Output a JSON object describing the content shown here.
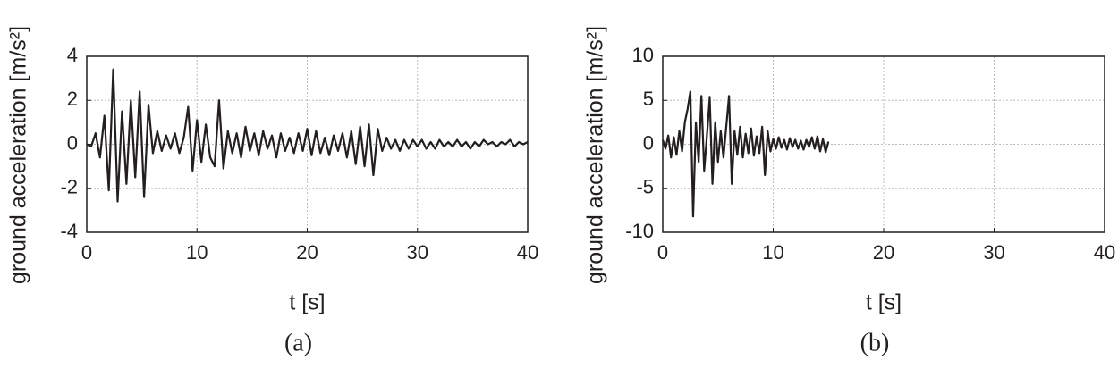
{
  "chart_data": [
    {
      "type": "line",
      "caption": "(a)",
      "xlabel": "t [s]",
      "ylabel": "ground acceleration [m/s²]",
      "xlim": [
        0,
        40
      ],
      "xticks": [
        0,
        10,
        20,
        30,
        40
      ],
      "ylim": [
        -4,
        4
      ],
      "yticks": [
        -4,
        -2,
        0,
        2,
        4
      ],
      "grid": true,
      "x": [
        0,
        0.4,
        0.8,
        1.2,
        1.6,
        2,
        2.4,
        2.8,
        3.2,
        3.6,
        4,
        4.4,
        4.8,
        5.2,
        5.6,
        6,
        6.4,
        6.8,
        7.2,
        7.6,
        8,
        8.4,
        8.8,
        9.2,
        9.6,
        10,
        10.4,
        10.8,
        11.2,
        11.6,
        12,
        12.4,
        12.8,
        13.2,
        13.6,
        14,
        14.4,
        14.8,
        15.2,
        15.6,
        16,
        16.4,
        16.8,
        17.2,
        17.6,
        18,
        18.4,
        18.8,
        19.2,
        19.6,
        20,
        20.4,
        20.8,
        21.2,
        21.6,
        22,
        22.4,
        22.8,
        23.2,
        23.6,
        24,
        24.4,
        24.8,
        25.2,
        25.6,
        26,
        26.4,
        26.8,
        27.2,
        27.6,
        28,
        28.4,
        28.8,
        29.2,
        29.6,
        30,
        30.4,
        30.8,
        31.2,
        31.6,
        32,
        32.4,
        32.8,
        33.2,
        33.6,
        34,
        34.4,
        34.8,
        35.2,
        35.6,
        36,
        36.4,
        36.8,
        37.2,
        37.6,
        38,
        38.4,
        38.8,
        39.2,
        39.6,
        40
      ],
      "series": [
        {
          "color": "#231f20",
          "values": [
            0,
            -0.1,
            0.5,
            -0.6,
            1.3,
            -2.1,
            3.4,
            -2.6,
            1.5,
            -1.8,
            2.0,
            -1.5,
            2.4,
            -2.4,
            1.8,
            -0.4,
            0.6,
            -0.3,
            0.4,
            -0.2,
            0.5,
            -0.4,
            0.3,
            1.7,
            -1.2,
            1.1,
            -0.8,
            0.9,
            -0.6,
            -1.0,
            2.0,
            -1.1,
            0.6,
            -0.4,
            0.5,
            -0.6,
            0.8,
            -0.3,
            0.5,
            -0.5,
            0.6,
            -0.2,
            0.4,
            -0.6,
            0.5,
            -0.3,
            0.3,
            -0.4,
            0.5,
            -0.3,
            0.7,
            -0.5,
            0.6,
            -0.4,
            0.3,
            -0.5,
            0.4,
            -0.3,
            0.5,
            -0.6,
            0.6,
            -0.9,
            0.8,
            -1.0,
            0.9,
            -1.4,
            0.7,
            -0.3,
            0.3,
            -0.2,
            0.2,
            -0.3,
            0.2,
            -0.2,
            0.2,
            -0.1,
            0.2,
            -0.2,
            0.1,
            -0.2,
            0.2,
            -0.1,
            0.1,
            -0.1,
            0.2,
            -0.1,
            0.1,
            -0.2,
            0.1,
            -0.1,
            0.2,
            0.0,
            0.1,
            -0.1,
            0.1,
            0.0,
            0.2,
            -0.1,
            0.1,
            0.0,
            0.1
          ]
        }
      ]
    },
    {
      "type": "line",
      "caption": "(b)",
      "xlabel": "t [s]",
      "ylabel": "ground acceleration [m/s²]",
      "xlim": [
        0,
        40
      ],
      "xticks": [
        0,
        10,
        20,
        30,
        40
      ],
      "ylim": [
        -10,
        10
      ],
      "yticks": [
        -10,
        -5,
        0,
        5,
        10
      ],
      "grid": true,
      "x": [
        0,
        0.25,
        0.5,
        0.75,
        1,
        1.25,
        1.5,
        1.75,
        2,
        2.25,
        2.5,
        2.75,
        3,
        3.25,
        3.5,
        3.75,
        4,
        4.25,
        4.5,
        4.75,
        5,
        5.25,
        5.5,
        5.75,
        6,
        6.25,
        6.5,
        6.75,
        7,
        7.25,
        7.5,
        7.75,
        8,
        8.25,
        8.5,
        8.75,
        9,
        9.25,
        9.5,
        9.75,
        10,
        10.25,
        10.5,
        10.75,
        11,
        11.25,
        11.5,
        11.75,
        12,
        12.25,
        12.5,
        12.75,
        13,
        13.25,
        13.5,
        13.75,
        14,
        14.25,
        14.5,
        14.75,
        15
      ],
      "series": [
        {
          "color": "#231f20",
          "values": [
            0.5,
            -0.5,
            1.0,
            -1.5,
            0.8,
            -1.2,
            1.5,
            -0.8,
            2.5,
            4.0,
            6.0,
            -8.2,
            2.5,
            -2.0,
            5.5,
            -3.0,
            1.0,
            5.3,
            -4.5,
            2.5,
            -2.0,
            1.5,
            -1.5,
            2.0,
            5.5,
            -4.5,
            1.5,
            -1.2,
            2.0,
            -1.5,
            1.2,
            -1.0,
            1.8,
            -1.3,
            0.9,
            -1.0,
            2.0,
            -3.5,
            1.5,
            -0.8,
            0.6,
            -0.5,
            0.8,
            -0.4,
            0.5,
            -0.6,
            0.7,
            -0.3,
            0.5,
            -0.5,
            0.4,
            -0.6,
            0.5,
            -0.3,
            0.8,
            -0.5,
            0.9,
            -0.8,
            0.6,
            -0.9,
            0.3
          ]
        }
      ]
    }
  ]
}
